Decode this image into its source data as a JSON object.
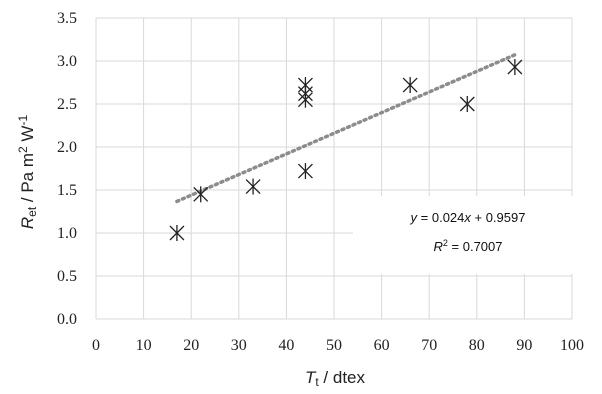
{
  "chart_data": {
    "type": "scatter",
    "title": "",
    "xlabel": {
      "var": "T",
      "sub": "t",
      "unit": " / dtex"
    },
    "ylabel": {
      "var": "R",
      "sub": "et",
      "unit": " / Pa m",
      "sup1": "2",
      "mid": " W",
      "sup2": "-1"
    },
    "xlim": [
      0,
      100
    ],
    "ylim": [
      0.0,
      3.5
    ],
    "xticks": [
      "0",
      "10",
      "20",
      "30",
      "40",
      "50",
      "60",
      "70",
      "80",
      "90",
      "100"
    ],
    "yticks": [
      "0.0",
      "0.5",
      "1.0",
      "1.5",
      "2.0",
      "2.5",
      "3.0",
      "3.5"
    ],
    "grid": true,
    "series": [
      {
        "points": [
          {
            "x": 17,
            "y": 1.0
          },
          {
            "x": 22,
            "y": 1.45
          },
          {
            "x": 33,
            "y": 1.54
          },
          {
            "x": 44,
            "y": 2.62
          },
          {
            "x": 44,
            "y": 2.72
          },
          {
            "x": 44,
            "y": 2.55
          },
          {
            "x": 44,
            "y": 1.72
          },
          {
            "x": 66,
            "y": 2.72
          },
          {
            "x": 78,
            "y": 2.5
          },
          {
            "x": 88,
            "y": 2.93
          }
        ]
      }
    ],
    "trendline": {
      "slope": 0.024,
      "intercept": 0.9597,
      "x_range": [
        17,
        88
      ],
      "equation": {
        "y": "y",
        "rest": " = 0.024",
        "x": "x",
        "tail": " + 0.9597"
      },
      "r2": {
        "r": "R",
        "sup": "2",
        "rest": " = 0.7007"
      }
    }
  }
}
